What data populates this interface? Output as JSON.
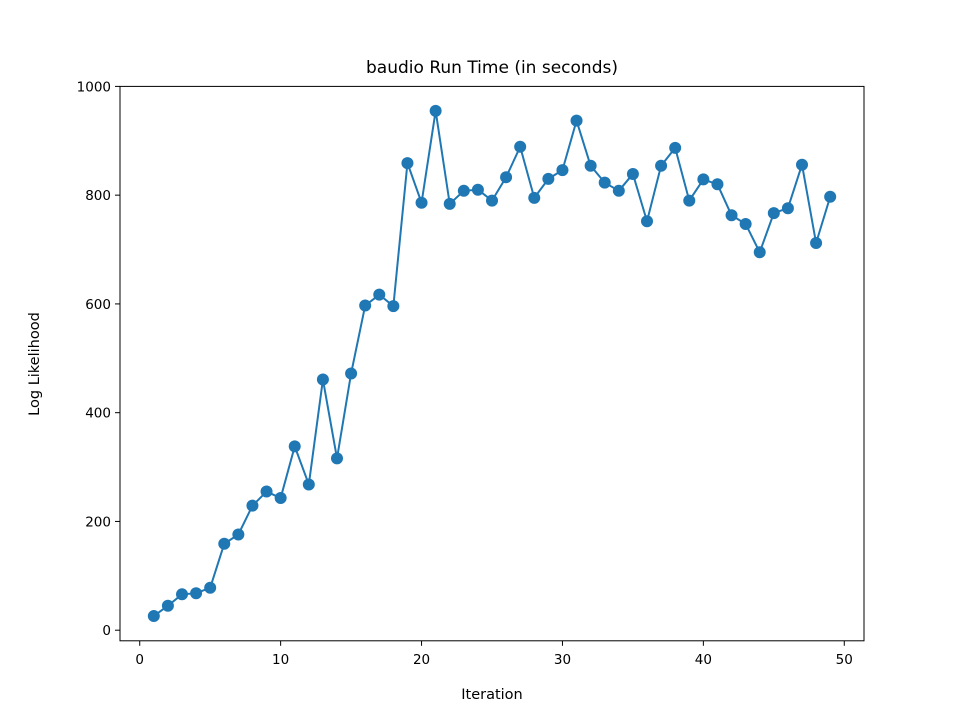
{
  "chart_data": {
    "type": "line",
    "title": "baudio Run Time (in seconds)",
    "xlabel": "Iteration",
    "ylabel": "Log Likelihood",
    "xlim": [
      -1.4,
      51.4
    ],
    "ylim": [
      -19.5,
      1000
    ],
    "xticks": [
      0,
      10,
      20,
      30,
      40,
      50
    ],
    "yticks": [
      0,
      200,
      400,
      600,
      800,
      1000
    ],
    "grid": false,
    "legend": "none",
    "marker": "circle",
    "color": "#1f77b4",
    "x": [
      1,
      2,
      3,
      4,
      5,
      6,
      7,
      8,
      9,
      10,
      11,
      12,
      13,
      14,
      15,
      16,
      17,
      18,
      19,
      20,
      21,
      22,
      23,
      24,
      25,
      26,
      27,
      28,
      29,
      30,
      31,
      32,
      33,
      34,
      35,
      36,
      37,
      38,
      39,
      40,
      41,
      42,
      43,
      44,
      45,
      46,
      47,
      48,
      49
    ],
    "y": [
      26,
      45,
      66,
      68,
      78,
      159,
      176,
      229,
      255,
      243,
      338,
      268,
      461,
      316,
      472,
      597,
      617,
      596,
      859,
      786,
      955,
      784,
      808,
      810,
      790,
      833,
      889,
      795,
      830,
      846,
      937,
      854,
      823,
      808,
      839,
      752,
      854,
      887,
      790,
      829,
      820,
      763,
      747,
      695,
      767,
      776,
      856,
      712,
      797
    ]
  }
}
